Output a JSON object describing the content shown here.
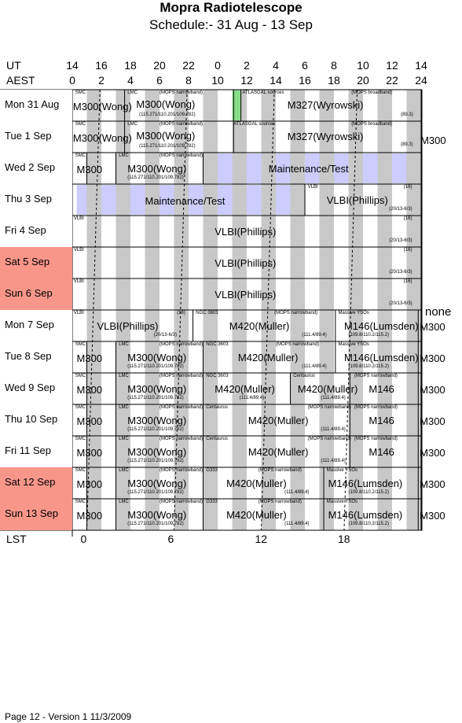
{
  "title": "Mopra Radiotelescope",
  "subtitle": "Schedule:- 31 Aug - 13 Sep",
  "axes": {
    "ut_label": "UT",
    "aest_label": "AEST",
    "lst_label": "LST",
    "ut_ticks": [
      "14",
      "16",
      "18",
      "20",
      "22",
      "0",
      "2",
      "4",
      "6",
      "8",
      "10",
      "12",
      "14"
    ],
    "aest_ticks": [
      "0",
      "2",
      "4",
      "6",
      "8",
      "10",
      "12",
      "14",
      "16",
      "18",
      "20",
      "22",
      "24"
    ],
    "lst_ticks": [
      "0",
      "6",
      "12",
      "18"
    ]
  },
  "days": [
    {
      "label": "Mon  31 Aug",
      "weekend": false
    },
    {
      "label": "Tue   1 Sep",
      "weekend": false
    },
    {
      "label": "Wed  2 Sep",
      "weekend": false
    },
    {
      "label": "Thu   3 Sep",
      "weekend": false
    },
    {
      "label": "Fri   4 Sep",
      "weekend": false
    },
    {
      "label": "Sat  5 Sep",
      "weekend": true
    },
    {
      "label": "Sun  6 Sep",
      "weekend": true
    },
    {
      "label": "Mon  7 Sep",
      "weekend": false
    },
    {
      "label": "Tue  8 Sep",
      "weekend": false
    },
    {
      "label": "Wed  9 Sep",
      "weekend": false
    },
    {
      "label": "Thu  10 Sep",
      "weekend": false
    },
    {
      "label": "Fri   11 Sep",
      "weekend": false
    },
    {
      "label": "Sat  12 Sep",
      "weekend": true
    },
    {
      "label": "Sun  13 Sep",
      "weekend": true
    }
  ],
  "side_label": "none",
  "m300_vertical": "M300",
  "footer": "Page 12 - Version 1  11/3/2009",
  "colors": {
    "weekend": "#f8968a",
    "stripe": "#c8c8c8",
    "maintenance": "#ccccff",
    "green": "#88dd88"
  }
}
